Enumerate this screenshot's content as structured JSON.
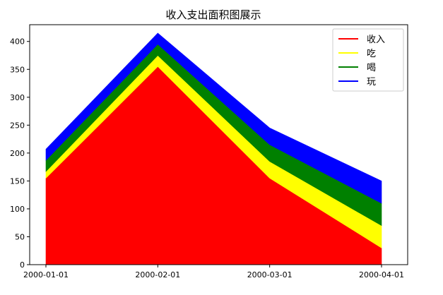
{
  "chart_data": {
    "type": "area",
    "stacked": true,
    "title": "收入支出面积图展示",
    "xlabel": "",
    "ylabel": "",
    "x": [
      "2000-01-01",
      "2000-02-01",
      "2000-03-01",
      "2000-04-01"
    ],
    "ylim": [
      0,
      430
    ],
    "y_ticks": [
      0,
      50,
      100,
      150,
      200,
      250,
      300,
      350,
      400
    ],
    "grid": false,
    "legend_position": "top-right",
    "series": [
      {
        "name": "收入",
        "color": "#ff0000",
        "values": [
          155,
          355,
          155,
          30
        ]
      },
      {
        "name": "吃",
        "color": "#ffff00",
        "values": [
          12,
          20,
          30,
          40
        ]
      },
      {
        "name": "喝",
        "color": "#008000",
        "values": [
          20,
          20,
          30,
          40
        ]
      },
      {
        "name": "玩",
        "color": "#0000ff",
        "values": [
          20,
          20,
          30,
          40
        ]
      }
    ]
  }
}
